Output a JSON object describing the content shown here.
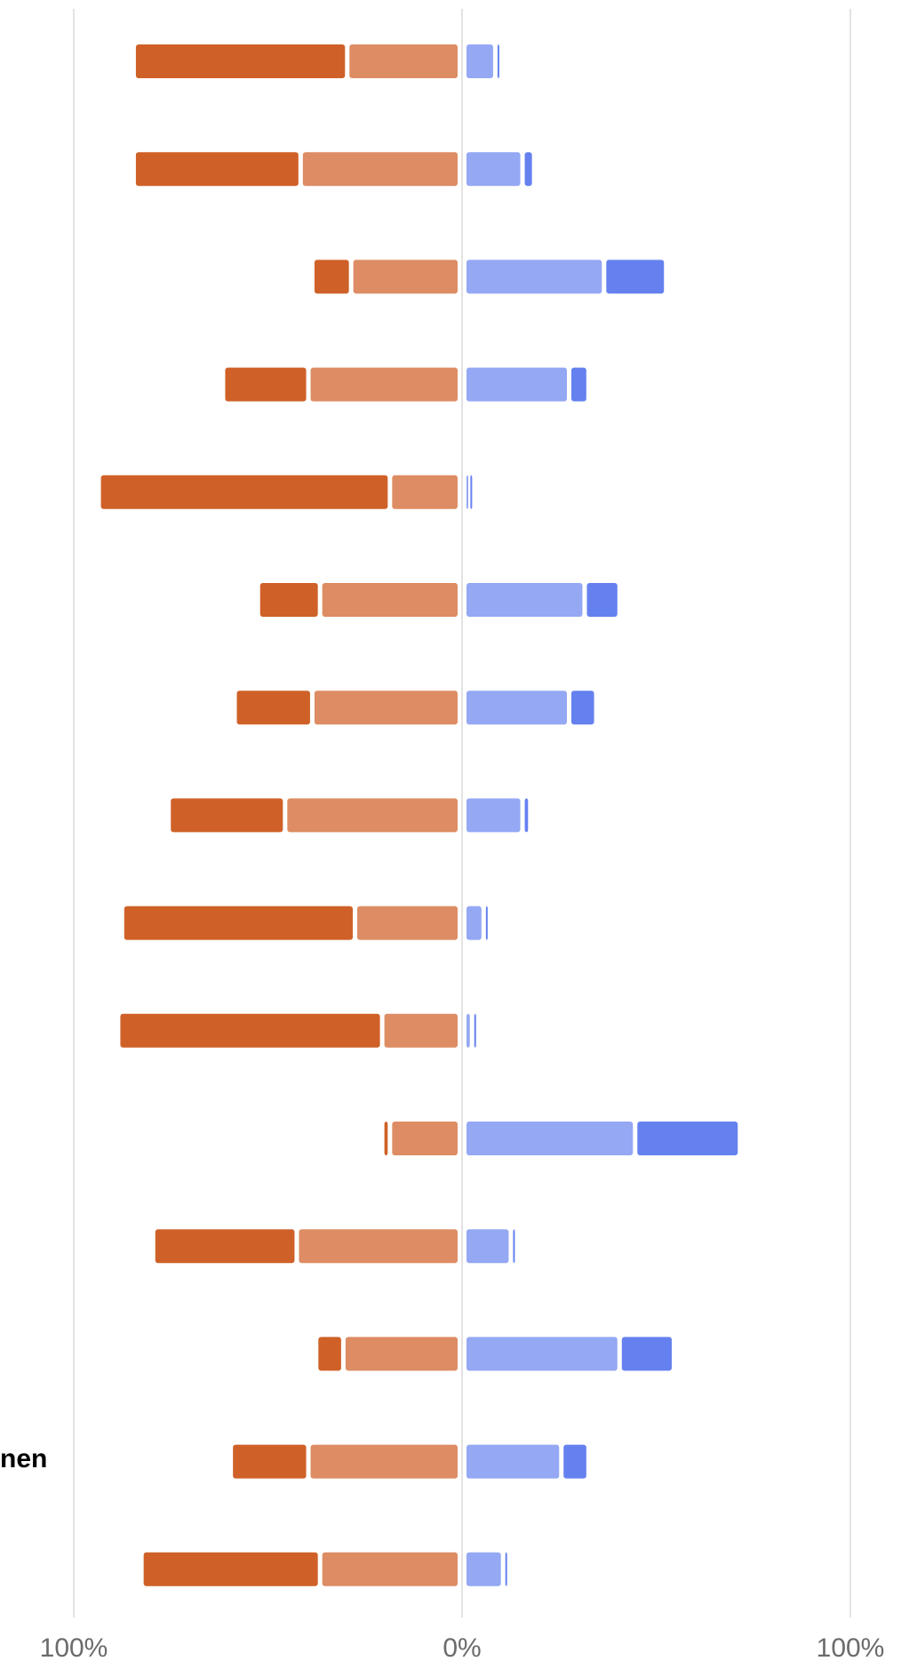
{
  "chart_data": {
    "type": "bar",
    "orientation": "horizontal",
    "stacked": "diverging",
    "categories": [
      "",
      "",
      "",
      "",
      "",
      "",
      "",
      "",
      "",
      "",
      "",
      "",
      "",
      "nen",
      ""
    ],
    "series": [
      {
        "values": [
          -55,
          -43,
          -10,
          -22,
          -75,
          -16,
          -20,
          -30,
          -60,
          -68,
          -2,
          -37,
          -7,
          -20,
          -46
        ]
      },
      {
        "values": [
          -29,
          -41,
          -28,
          -39,
          -18,
          -36,
          -38,
          -45,
          -27,
          -20,
          -18,
          -42,
          -30,
          -39,
          -36
        ]
      },
      {
        "values": [
          8,
          15,
          36,
          27,
          1,
          31,
          27,
          15,
          5,
          2,
          44,
          12,
          40,
          25,
          10
        ]
      },
      {
        "values": [
          1,
          3,
          16,
          5,
          1,
          9,
          7,
          2,
          1,
          1,
          27,
          1,
          14,
          7,
          1
        ]
      }
    ],
    "colors": [
      "#cf6128",
      "#dd8c63",
      "#94a8f3",
      "#6581ef"
    ],
    "xlim": [
      -100,
      100
    ],
    "ticks": [
      {
        "value": -100,
        "label": "100%"
      },
      {
        "value": 0,
        "label": "0%"
      },
      {
        "value": 100,
        "label": "100%"
      }
    ],
    "grid": true,
    "legend": "none"
  }
}
